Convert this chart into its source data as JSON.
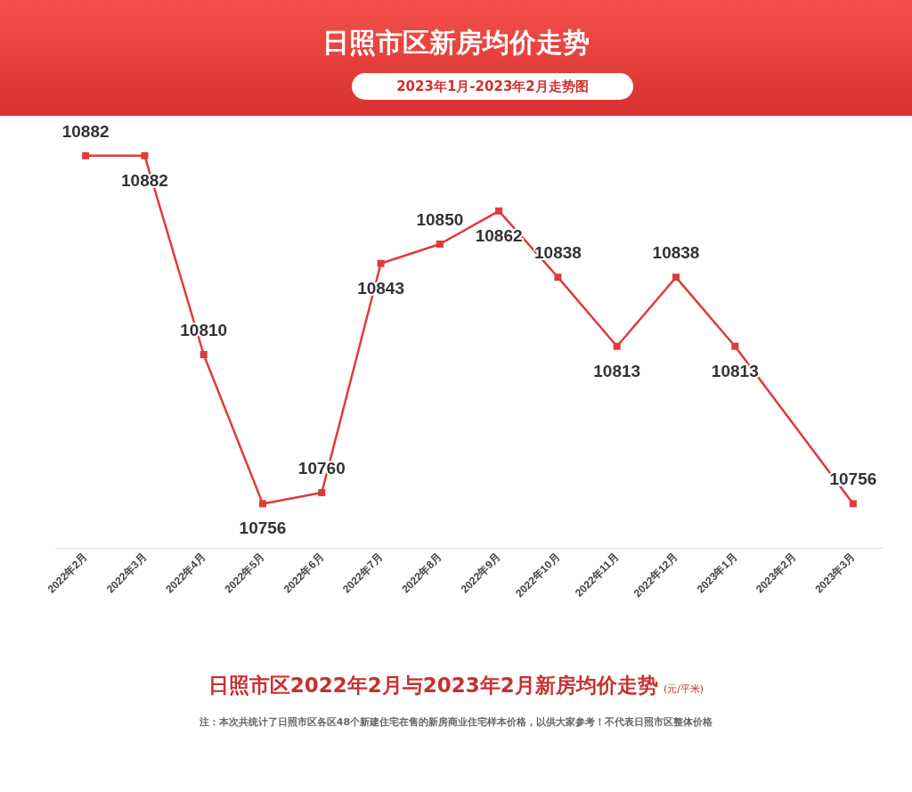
{
  "chart_data": {
    "type": "line",
    "title": "日照市区新房均价走势",
    "subtitle": "2023年1月-2023年2月走势图",
    "categories": [
      "2022年2月",
      "2022年3月",
      "2022年4月",
      "2022年5月",
      "2022年6月",
      "2022年7月",
      "2022年8月",
      "2022年9月",
      "2022年10月",
      "2022年11月",
      "2022年12月",
      "2023年1月",
      "2023年2月",
      "2023年3月"
    ],
    "values": [
      10882,
      10882,
      10810,
      10756,
      10760,
      10843,
      10850,
      10862,
      10838,
      10813,
      10838,
      10813,
      null,
      10756
    ],
    "color": "#e03a3a",
    "marker": "square",
    "data_labels": true,
    "annotations": [
      "日照市区2022年2月与2023年2月新房均价走势",
      "(元/平米)",
      "注：本次共统计了日照市区各区48个新建住宅在售的新房商业住宅样本价格，以供大家参考！不代表日照市区整体价格"
    ]
  }
}
